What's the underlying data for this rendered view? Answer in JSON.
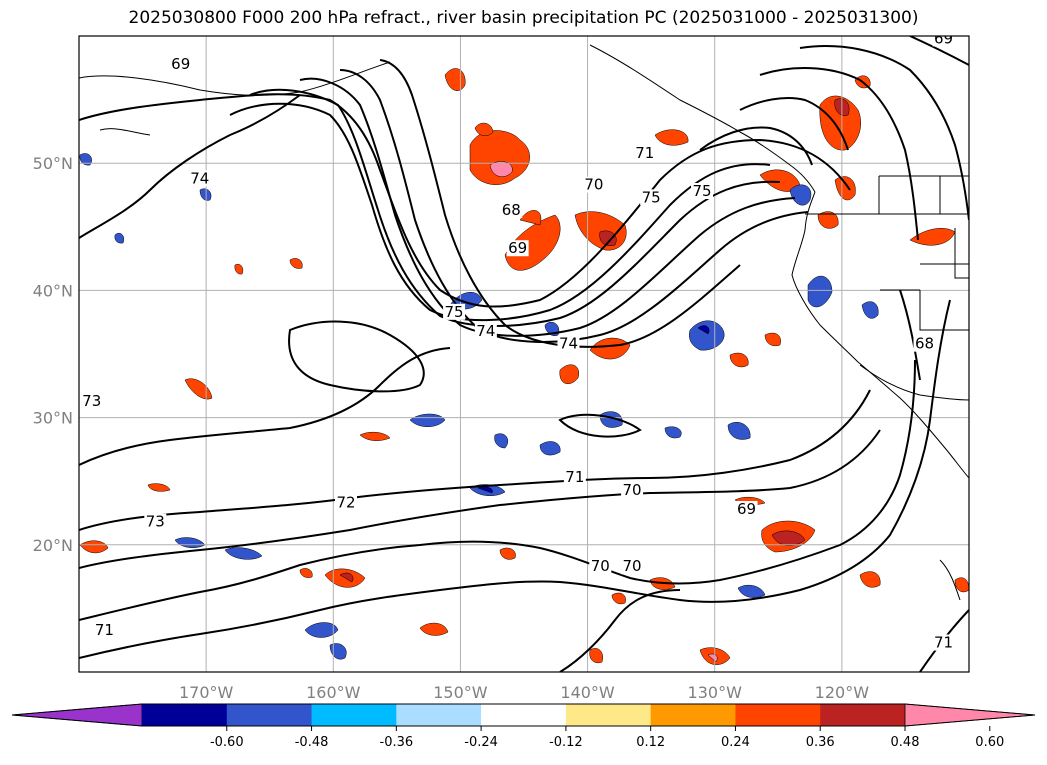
{
  "title": "2025030800 F000 200 hPa refract., river basin precipitation PC (2025031000 - 2025031300)",
  "map": {
    "lon_range": [
      -180,
      -110
    ],
    "lat_range": [
      10,
      60
    ],
    "lat_ticks": [
      {
        "value": 50,
        "label": "50°N"
      },
      {
        "value": 40,
        "label": "40°N"
      },
      {
        "value": 30,
        "label": "30°N"
      },
      {
        "value": 20,
        "label": "20°N"
      }
    ],
    "lon_ticks": [
      {
        "value": -170,
        "label": "170°W"
      },
      {
        "value": -160,
        "label": "160°W"
      },
      {
        "value": -150,
        "label": "150°W"
      },
      {
        "value": -140,
        "label": "140°W"
      },
      {
        "value": -130,
        "label": "130°W"
      },
      {
        "value": -120,
        "label": "120°W"
      }
    ],
    "grid": true,
    "contour_labels": [
      {
        "text": "69",
        "lon": -172.0,
        "lat": 57.5
      },
      {
        "text": "74",
        "lon": -170.5,
        "lat": 48.5
      },
      {
        "text": "75",
        "lon": -150.5,
        "lat": 38.0
      },
      {
        "text": "74",
        "lon": -148.0,
        "lat": 36.5
      },
      {
        "text": "74",
        "lon": -141.5,
        "lat": 35.5
      },
      {
        "text": "73",
        "lon": -179.0,
        "lat": 31.0
      },
      {
        "text": "73",
        "lon": -174.0,
        "lat": 21.5
      },
      {
        "text": "72",
        "lon": -159.0,
        "lat": 23.0
      },
      {
        "text": "71",
        "lon": -178.0,
        "lat": 13.0
      },
      {
        "text": "71",
        "lon": -141.0,
        "lat": 25.0
      },
      {
        "text": "70",
        "lon": -136.5,
        "lat": 24.0
      },
      {
        "text": "70",
        "lon": -139.0,
        "lat": 18.0
      },
      {
        "text": "70",
        "lon": -136.5,
        "lat": 18.0
      },
      {
        "text": "69",
        "lon": -127.5,
        "lat": 22.5
      },
      {
        "text": "68",
        "lon": -146.0,
        "lat": 46.0
      },
      {
        "text": "69",
        "lon": -145.5,
        "lat": 43.0
      },
      {
        "text": "70",
        "lon": -139.5,
        "lat": 48.0
      },
      {
        "text": "71",
        "lon": -135.5,
        "lat": 50.5
      },
      {
        "text": "75",
        "lon": -135.0,
        "lat": 47.0
      },
      {
        "text": "75",
        "lon": -131.0,
        "lat": 47.5
      },
      {
        "text": "68",
        "lon": -113.5,
        "lat": 35.5
      },
      {
        "text": "71",
        "lon": -112.0,
        "lat": 12.0
      },
      {
        "text": "69",
        "lon": -112.0,
        "lat": 59.5
      }
    ],
    "contour_color": "#000000",
    "border_color": "#000000"
  },
  "colorbar": {
    "colors": [
      "#9933cc",
      "#000099",
      "#3355cc",
      "#00bbff",
      "#aaddff",
      "#ffffff",
      "#ffe888",
      "#ff9900",
      "#ff4400",
      "#bb2222",
      "#ff88aa"
    ],
    "ticks": [
      "-0.60",
      "-0.48",
      "-0.36",
      "-0.24",
      "-0.12",
      "0.12",
      "0.24",
      "0.36",
      "0.48",
      "0.60"
    ],
    "extend": "both"
  }
}
